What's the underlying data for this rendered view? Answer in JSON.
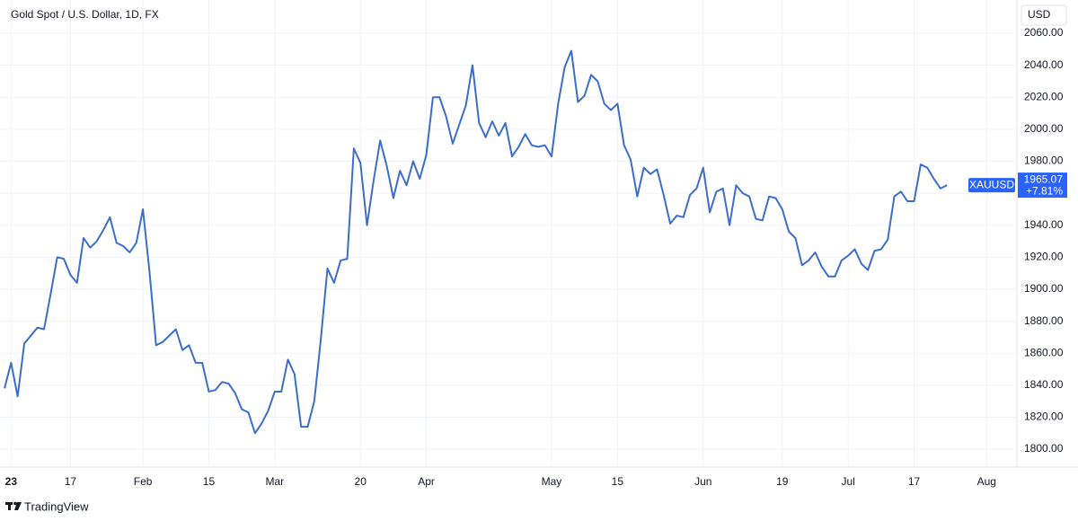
{
  "chart_data": {
    "type": "line",
    "title": "Gold Spot / U.S. Dollar, 1D, FX",
    "currency": "USD",
    "symbol": "XAUUSD",
    "change": "+7.81%",
    "brand": "TradingView",
    "color": "#3d6dcc",
    "grid": true,
    "values": [
      1838,
      1854,
      1833,
      1866,
      1871,
      1876,
      1875,
      1897,
      1920,
      1919,
      1909,
      1904,
      1932,
      1926,
      1930,
      1937,
      1945,
      1929,
      1927,
      1923,
      1929,
      1950,
      1911,
      1865,
      1867,
      1871,
      1875,
      1862,
      1865,
      1854,
      1854,
      1836,
      1837,
      1842,
      1841,
      1835,
      1825,
      1823,
      1810,
      1816,
      1824,
      1836,
      1836,
      1856,
      1847,
      1814,
      1814,
      1830,
      1869,
      1913,
      1904,
      1918,
      1919,
      1988,
      1979,
      1940,
      1968,
      1993,
      1977,
      1957,
      1974,
      1965,
      1980,
      1969,
      1984,
      2020,
      2020,
      2008,
      1991,
      2003,
      2015,
      2040,
      2004,
      1995,
      2005,
      1996,
      2004,
      1983,
      1989,
      1997,
      1990,
      1989,
      1990,
      1983,
      2016,
      2039,
      2049,
      2017,
      2021,
      2034,
      2030,
      2016,
      2012,
      2016,
      1990,
      1981,
      1958,
      1976,
      1972,
      1975,
      1959,
      1941,
      1946,
      1945,
      1959,
      1963,
      1976,
      1948,
      1961,
      1963,
      1940,
      1965,
      1960,
      1958,
      1944,
      1943,
      1958,
      1957,
      1950,
      1936,
      1932,
      1915,
      1918,
      1923,
      1914,
      1908,
      1908,
      1918,
      1921,
      1925,
      1916,
      1912,
      1924,
      1925,
      1931,
      1958,
      1961,
      1955,
      1955,
      1978,
      1976,
      1969,
      1963,
      1965.07
    ],
    "xlim": [
      0,
      153.6
    ],
    "xticks": [
      {
        "value": 1,
        "label": "23"
      },
      {
        "value": 10,
        "label": "17"
      },
      {
        "value": 21,
        "label": "Feb"
      },
      {
        "value": 31,
        "label": "15"
      },
      {
        "value": 41,
        "label": "Mar"
      },
      {
        "value": 54,
        "label": "20"
      },
      {
        "value": 64,
        "label": "Apr"
      },
      {
        "value": 83,
        "label": "May"
      },
      {
        "value": 93,
        "label": "15"
      },
      {
        "value": 106,
        "label": "Jun"
      },
      {
        "value": 118,
        "label": "19"
      },
      {
        "value": 128,
        "label": "Jul"
      },
      {
        "value": 138,
        "label": "17"
      },
      {
        "value": 149,
        "label": "Aug"
      }
    ],
    "ylim": [
      1788.8,
      2078
    ],
    "yticks": [
      {
        "value": 1800,
        "label": "1800.00"
      },
      {
        "value": 1820,
        "label": "1820.00"
      },
      {
        "value": 1840,
        "label": "1840.00"
      },
      {
        "value": 1860,
        "label": "1860.00"
      },
      {
        "value": 1880,
        "label": "1880.00"
      },
      {
        "value": 1900,
        "label": "1900.00"
      },
      {
        "value": 1920,
        "label": "1920.00"
      },
      {
        "value": 1940,
        "label": "1940.00"
      },
      {
        "value": 1960,
        "label": "1960.00"
      },
      {
        "value": 1980,
        "label": "1980.00"
      },
      {
        "value": 2000,
        "label": "2000.00"
      },
      {
        "value": 2020,
        "label": "2020.00"
      },
      {
        "value": 2040,
        "label": "2040.00"
      },
      {
        "value": 2060,
        "label": "2060.00"
      }
    ]
  }
}
